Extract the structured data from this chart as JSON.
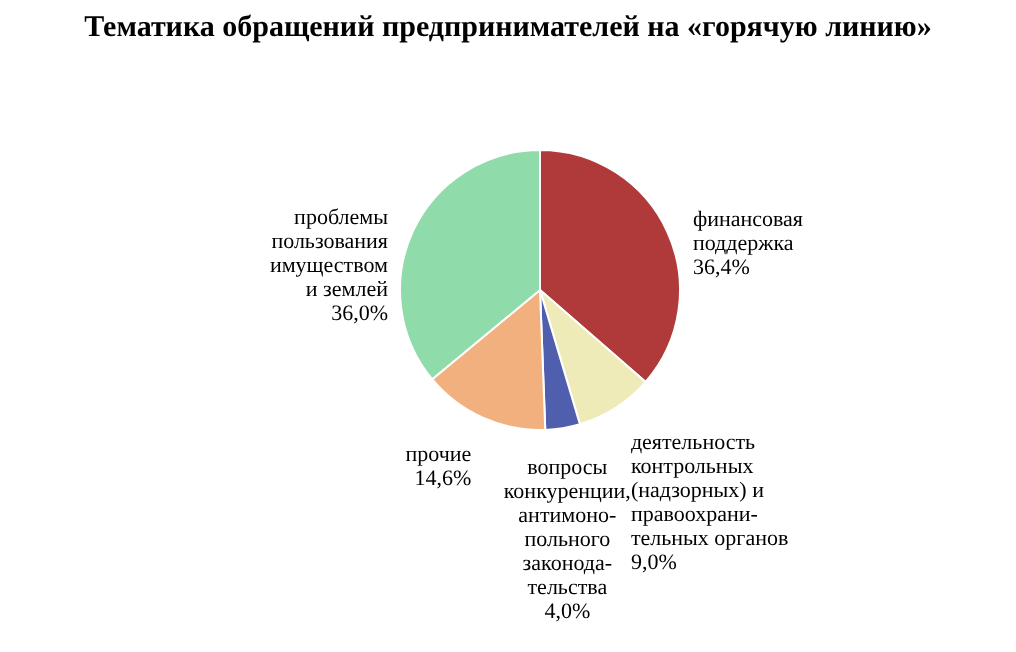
{
  "chart_data": {
    "type": "pie",
    "title": "Тематика обращений предпринимателей на «горячую линию»",
    "categories": [
      "финансовая\nподдержка",
      "деятельность\nконтрольных\n(надзорных) и\nправоохрани-\nтельных органов",
      "вопросы\nконкуренции,\nантимоно-\nпольного\nзаконода-\nтельства",
      "прочие",
      "проблемы\nпользования\nимуществом\nи землей"
    ],
    "values": [
      36.4,
      9.0,
      4.0,
      14.6,
      36.0
    ],
    "value_labels": [
      "36,4%",
      "9,0%",
      "4,0%",
      "14,6%",
      "36,0%"
    ],
    "colors": [
      "#b03a3a",
      "#eeebb8",
      "#4f5fae",
      "#f2b07e",
      "#8fdcaa"
    ]
  }
}
